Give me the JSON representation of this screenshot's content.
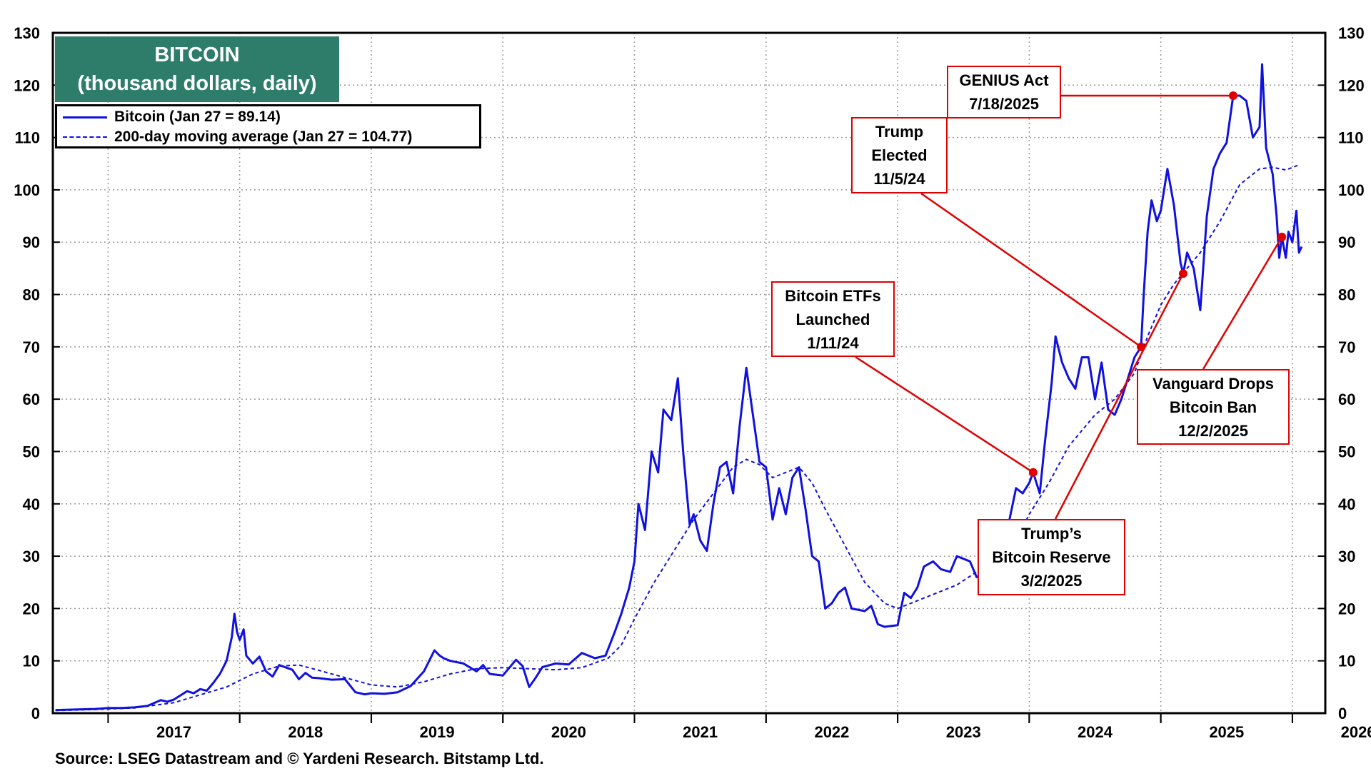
{
  "title": {
    "line1": "BITCOIN",
    "line2": "(thousand dollars, daily)"
  },
  "legend": {
    "bitcoin": "Bitcoin (Jan 27 = 89.14)",
    "moving_average": "200-day moving average (Jan 27 = 104.77)"
  },
  "source": "Source: LSEG Datastream and © Yardeni Research. Bitstamp Ltd.",
  "annotations": {
    "genius": {
      "line1": "GENIUS Act",
      "line2": "7/18/2025"
    },
    "trump_elected": {
      "line1": "Trump",
      "line2": "Elected",
      "line3": "11/5/24"
    },
    "etfs": {
      "line1": "Bitcoin ETFs",
      "line2": "Launched",
      "line3": "1/11/24"
    },
    "reserve": {
      "line1": "Trump’s",
      "line2": "Bitcoin Reserve",
      "line3": "3/2/2025"
    },
    "vanguard": {
      "line1": "Vanguard Drops",
      "line2": "Bitcoin Ban",
      "line3": "12/2/2025"
    }
  },
  "colors": {
    "series": "#1010e0",
    "annotation": "#e00000",
    "title_bg": "#2e7d6b",
    "grid": "#9a9a9a"
  },
  "chart_data": {
    "type": "line",
    "xlabel": "",
    "ylabel": "",
    "xlim": [
      2016.58,
      2026.25
    ],
    "ylim": [
      0,
      130
    ],
    "y_ticks": [
      0,
      10,
      20,
      30,
      40,
      50,
      60,
      70,
      80,
      90,
      100,
      110,
      120,
      130
    ],
    "year_labels": [
      "2017",
      "2018",
      "2019",
      "2020",
      "2021",
      "2022",
      "2023",
      "2024",
      "2025",
      "2026"
    ],
    "grid": "dotted",
    "legend_position": "top-left",
    "series": [
      {
        "name": "Bitcoin (Jan 27 = 89.14)",
        "style": "solid",
        "points": [
          [
            2016.6,
            0.6
          ],
          [
            2016.75,
            0.7
          ],
          [
            2016.9,
            0.8
          ],
          [
            2017.0,
            1.0
          ],
          [
            2017.1,
            1.0
          ],
          [
            2017.2,
            1.1
          ],
          [
            2017.3,
            1.4
          ],
          [
            2017.4,
            2.5
          ],
          [
            2017.45,
            2.2
          ],
          [
            2017.5,
            2.6
          ],
          [
            2017.6,
            4.2
          ],
          [
            2017.65,
            3.8
          ],
          [
            2017.7,
            4.6
          ],
          [
            2017.75,
            4.3
          ],
          [
            2017.8,
            5.8
          ],
          [
            2017.85,
            7.5
          ],
          [
            2017.9,
            10.0
          ],
          [
            2017.94,
            14.5
          ],
          [
            2017.96,
            19.0
          ],
          [
            2017.98,
            15.5
          ],
          [
            2018.0,
            14.0
          ],
          [
            2018.03,
            16.0
          ],
          [
            2018.05,
            11.0
          ],
          [
            2018.1,
            9.5
          ],
          [
            2018.15,
            10.8
          ],
          [
            2018.2,
            8.0
          ],
          [
            2018.25,
            7.0
          ],
          [
            2018.3,
            9.2
          ],
          [
            2018.4,
            8.3
          ],
          [
            2018.45,
            6.5
          ],
          [
            2018.5,
            7.7
          ],
          [
            2018.55,
            6.8
          ],
          [
            2018.6,
            6.7
          ],
          [
            2018.7,
            6.4
          ],
          [
            2018.8,
            6.5
          ],
          [
            2018.88,
            4.0
          ],
          [
            2018.95,
            3.6
          ],
          [
            2019.0,
            3.8
          ],
          [
            2019.1,
            3.7
          ],
          [
            2019.2,
            4.0
          ],
          [
            2019.3,
            5.2
          ],
          [
            2019.4,
            8.0
          ],
          [
            2019.48,
            12.0
          ],
          [
            2019.52,
            11.0
          ],
          [
            2019.55,
            10.5
          ],
          [
            2019.6,
            10.0
          ],
          [
            2019.7,
            9.5
          ],
          [
            2019.8,
            8.0
          ],
          [
            2019.85,
            9.2
          ],
          [
            2019.9,
            7.5
          ],
          [
            2020.0,
            7.2
          ],
          [
            2020.1,
            10.2
          ],
          [
            2020.15,
            9.0
          ],
          [
            2020.2,
            5.0
          ],
          [
            2020.25,
            6.8
          ],
          [
            2020.3,
            8.8
          ],
          [
            2020.4,
            9.5
          ],
          [
            2020.5,
            9.3
          ],
          [
            2020.6,
            11.5
          ],
          [
            2020.7,
            10.5
          ],
          [
            2020.78,
            11.0
          ],
          [
            2020.85,
            15.5
          ],
          [
            2020.9,
            19.0
          ],
          [
            2020.96,
            24.0
          ],
          [
            2021.0,
            29.0
          ],
          [
            2021.03,
            40.0
          ],
          [
            2021.08,
            35.0
          ],
          [
            2021.13,
            50.0
          ],
          [
            2021.18,
            46.0
          ],
          [
            2021.22,
            58.0
          ],
          [
            2021.28,
            56.0
          ],
          [
            2021.33,
            64.0
          ],
          [
            2021.37,
            50.0
          ],
          [
            2021.42,
            36.0
          ],
          [
            2021.45,
            38.0
          ],
          [
            2021.5,
            33.0
          ],
          [
            2021.55,
            31.0
          ],
          [
            2021.6,
            40.0
          ],
          [
            2021.65,
            47.0
          ],
          [
            2021.7,
            48.0
          ],
          [
            2021.75,
            42.0
          ],
          [
            2021.8,
            55.0
          ],
          [
            2021.85,
            66.0
          ],
          [
            2021.9,
            57.0
          ],
          [
            2021.95,
            48.0
          ],
          [
            2022.0,
            47.0
          ],
          [
            2022.05,
            37.0
          ],
          [
            2022.1,
            43.0
          ],
          [
            2022.15,
            38.0
          ],
          [
            2022.2,
            45.0
          ],
          [
            2022.25,
            47.0
          ],
          [
            2022.3,
            39.0
          ],
          [
            2022.35,
            30.0
          ],
          [
            2022.4,
            29.0
          ],
          [
            2022.45,
            20.0
          ],
          [
            2022.5,
            21.0
          ],
          [
            2022.55,
            23.0
          ],
          [
            2022.6,
            24.0
          ],
          [
            2022.65,
            20.0
          ],
          [
            2022.75,
            19.5
          ],
          [
            2022.8,
            20.5
          ],
          [
            2022.85,
            17.0
          ],
          [
            2022.9,
            16.5
          ],
          [
            2023.0,
            16.8
          ],
          [
            2023.05,
            23.0
          ],
          [
            2023.1,
            22.0
          ],
          [
            2023.15,
            24.0
          ],
          [
            2023.2,
            28.0
          ],
          [
            2023.27,
            29.0
          ],
          [
            2023.33,
            27.5
          ],
          [
            2023.4,
            27.0
          ],
          [
            2023.45,
            30.0
          ],
          [
            2023.5,
            29.5
          ],
          [
            2023.55,
            29.0
          ],
          [
            2023.6,
            26.0
          ],
          [
            2023.7,
            27.0
          ],
          [
            2023.75,
            27.5
          ],
          [
            2023.8,
            34.0
          ],
          [
            2023.85,
            37.0
          ],
          [
            2023.9,
            43.0
          ],
          [
            2023.95,
            42.0
          ],
          [
            2024.0,
            44.0
          ],
          [
            2024.03,
            46.0
          ],
          [
            2024.08,
            42.0
          ],
          [
            2024.12,
            52.0
          ],
          [
            2024.17,
            63.0
          ],
          [
            2024.2,
            72.0
          ],
          [
            2024.25,
            67.0
          ],
          [
            2024.3,
            64.0
          ],
          [
            2024.35,
            62.0
          ],
          [
            2024.4,
            68.0
          ],
          [
            2024.45,
            68.0
          ],
          [
            2024.5,
            60.0
          ],
          [
            2024.55,
            67.0
          ],
          [
            2024.6,
            58.0
          ],
          [
            2024.65,
            57.0
          ],
          [
            2024.7,
            60.0
          ],
          [
            2024.75,
            64.0
          ],
          [
            2024.8,
            68.0
          ],
          [
            2024.85,
            70.0
          ],
          [
            2024.87,
            80.0
          ],
          [
            2024.9,
            92.0
          ],
          [
            2024.93,
            98.0
          ],
          [
            2024.97,
            94.0
          ],
          [
            2025.0,
            96.0
          ],
          [
            2025.05,
            104.0
          ],
          [
            2025.1,
            97.0
          ],
          [
            2025.15,
            86.0
          ],
          [
            2025.17,
            84.0
          ],
          [
            2025.2,
            88.0
          ],
          [
            2025.25,
            85.0
          ],
          [
            2025.3,
            77.0
          ],
          [
            2025.35,
            95.0
          ],
          [
            2025.4,
            104.0
          ],
          [
            2025.45,
            107.0
          ],
          [
            2025.5,
            109.0
          ],
          [
            2025.55,
            118.0
          ],
          [
            2025.6,
            118.0
          ],
          [
            2025.65,
            117.0
          ],
          [
            2025.7,
            110.0
          ],
          [
            2025.75,
            112.0
          ],
          [
            2025.77,
            124.0
          ],
          [
            2025.8,
            108.0
          ],
          [
            2025.85,
            103.0
          ],
          [
            2025.88,
            95.0
          ],
          [
            2025.9,
            87.0
          ],
          [
            2025.92,
            91.0
          ],
          [
            2025.95,
            87.0
          ],
          [
            2025.97,
            92.0
          ],
          [
            2026.0,
            90.0
          ],
          [
            2026.03,
            96.0
          ],
          [
            2026.05,
            88.0
          ],
          [
            2026.07,
            89.14
          ]
        ]
      },
      {
        "name": "200-day moving average (Jan 27 = 104.77)",
        "style": "dashed",
        "points": [
          [
            2016.6,
            0.5
          ],
          [
            2016.9,
            0.7
          ],
          [
            2017.2,
            1.0
          ],
          [
            2017.5,
            2.0
          ],
          [
            2017.7,
            3.5
          ],
          [
            2017.9,
            5.0
          ],
          [
            2018.1,
            7.5
          ],
          [
            2018.3,
            9.0
          ],
          [
            2018.45,
            9.2
          ],
          [
            2018.6,
            8.2
          ],
          [
            2018.8,
            6.8
          ],
          [
            2019.0,
            5.4
          ],
          [
            2019.2,
            5.0
          ],
          [
            2019.4,
            6.0
          ],
          [
            2019.6,
            7.5
          ],
          [
            2019.8,
            8.5
          ],
          [
            2020.0,
            8.7
          ],
          [
            2020.2,
            8.5
          ],
          [
            2020.4,
            8.3
          ],
          [
            2020.6,
            8.7
          ],
          [
            2020.8,
            10.5
          ],
          [
            2020.9,
            13.0
          ],
          [
            2021.0,
            18.0
          ],
          [
            2021.15,
            25.0
          ],
          [
            2021.3,
            31.0
          ],
          [
            2021.45,
            37.0
          ],
          [
            2021.6,
            42.0
          ],
          [
            2021.75,
            47.0
          ],
          [
            2021.85,
            48.5
          ],
          [
            2021.95,
            47.5
          ],
          [
            2022.05,
            45.0
          ],
          [
            2022.15,
            46.0
          ],
          [
            2022.25,
            47.0
          ],
          [
            2022.35,
            44.0
          ],
          [
            2022.45,
            39.0
          ],
          [
            2022.6,
            32.0
          ],
          [
            2022.75,
            25.0
          ],
          [
            2022.9,
            21.0
          ],
          [
            2023.0,
            20.0
          ],
          [
            2023.15,
            21.5
          ],
          [
            2023.3,
            23.0
          ],
          [
            2023.45,
            24.5
          ],
          [
            2023.6,
            27.0
          ],
          [
            2023.75,
            30.0
          ],
          [
            2023.9,
            33.0
          ],
          [
            2024.0,
            38.0
          ],
          [
            2024.15,
            44.0
          ],
          [
            2024.3,
            51.0
          ],
          [
            2024.5,
            57.0
          ],
          [
            2024.65,
            60.0
          ],
          [
            2024.8,
            65.0
          ],
          [
            2024.9,
            72.0
          ],
          [
            2025.0,
            78.0
          ],
          [
            2025.1,
            82.0
          ],
          [
            2025.2,
            85.0
          ],
          [
            2025.3,
            88.0
          ],
          [
            2025.45,
            94.0
          ],
          [
            2025.6,
            101.0
          ],
          [
            2025.75,
            104.0
          ],
          [
            2025.85,
            104.3
          ],
          [
            2025.95,
            103.8
          ],
          [
            2026.05,
            104.77
          ]
        ]
      }
    ],
    "events": [
      {
        "label": "Bitcoin ETFs Launched",
        "date": "1/11/24",
        "x": 2024.03,
        "y": 46.0
      },
      {
        "label": "Trump Elected",
        "date": "11/5/24",
        "x": 2024.85,
        "y": 70.0
      },
      {
        "label": "Trump’s Bitcoin Reserve",
        "date": "3/2/2025",
        "x": 2025.17,
        "y": 84.0
      },
      {
        "label": "GENIUS Act",
        "date": "7/18/2025",
        "x": 2025.55,
        "y": 118.0
      },
      {
        "label": "Vanguard Drops Bitcoin Ban",
        "date": "12/2/2025",
        "x": 2025.92,
        "y": 91.0
      }
    ]
  }
}
